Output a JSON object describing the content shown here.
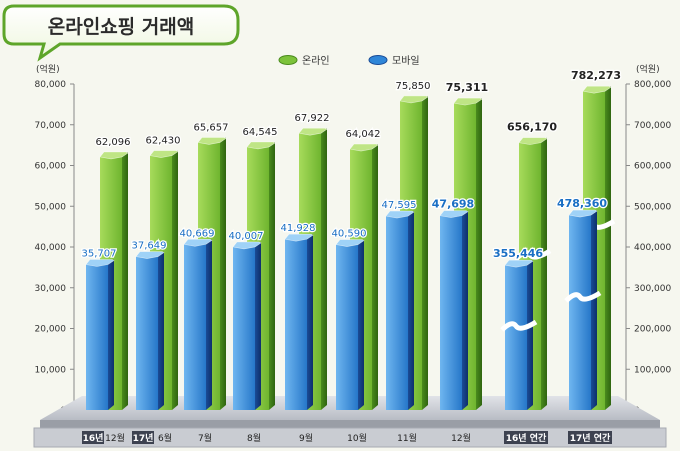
{
  "header": {
    "title": "온라인쇼핑 거래액"
  },
  "legend": [
    {
      "label": "온라인",
      "color": "#7cc23a"
    },
    {
      "label": "모바일",
      "color": "#2f86d8"
    }
  ],
  "left_axis": {
    "unit": "(억원)",
    "ticks": [
      "80,000",
      "70,000",
      "60,000",
      "50,000",
      "40,000",
      "30,000",
      "20,000",
      "10,000",
      "0"
    ]
  },
  "right_axis": {
    "unit": "(억원)",
    "ticks": [
      "800,000",
      "700,000",
      "600,000",
      "500,000",
      "400,000",
      "300,000",
      "200,000",
      "100,000",
      "0"
    ]
  },
  "chart_data": {
    "type": "bar",
    "title": "온라인쇼핑 거래액",
    "categories": [
      "16년 12월",
      "17년 6월",
      "7월",
      "8월",
      "9월",
      "10월",
      "11월",
      "12월",
      "16년 연간",
      "17년 연간"
    ],
    "category_parts": [
      {
        "a": "16년",
        "b": "12월"
      },
      {
        "a": "17년",
        "b": "6월"
      },
      {
        "a": "",
        "b": "7월"
      },
      {
        "a": "",
        "b": "8월"
      },
      {
        "a": "",
        "b": "9월"
      },
      {
        "a": "",
        "b": "10월"
      },
      {
        "a": "",
        "b": "11월"
      },
      {
        "a": "",
        "b": "12월"
      },
      {
        "a": "16년",
        "b": "연간"
      },
      {
        "a": "17년",
        "b": "연간"
      }
    ],
    "series": [
      {
        "name": "온라인",
        "values": [
          62096,
          62430,
          65657,
          64545,
          67922,
          64042,
          75850,
          75311,
          656170,
          782273
        ],
        "labels": [
          "62,096",
          "62,430",
          "65,657",
          "64,545",
          "67,922",
          "64,042",
          "75,850",
          "75,311",
          "656,170",
          "782,273"
        ]
      },
      {
        "name": "모바일",
        "values": [
          35707,
          37649,
          40669,
          40007,
          41928,
          40590,
          47595,
          47698,
          355446,
          478360
        ],
        "labels": [
          "35,707",
          "37,649",
          "40,669",
          "40,007",
          "41,928",
          "40,590",
          "47,595",
          "47,698",
          "355,446",
          "478,360"
        ]
      }
    ],
    "bold_labels": [
      7,
      8,
      9
    ],
    "axis_break_on": [
      8,
      9
    ],
    "ylim_left": [
      0,
      80000
    ],
    "ylim_right": [
      0,
      800000
    ],
    "left_axis_for": [
      0,
      1,
      2,
      3,
      4,
      5,
      6,
      7
    ],
    "right_axis_for": [
      8,
      9
    ]
  }
}
